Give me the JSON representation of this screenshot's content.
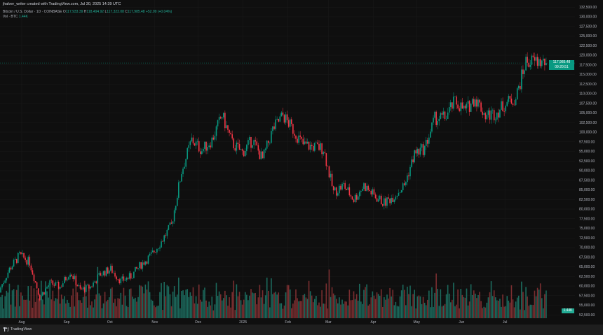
{
  "header": {
    "title": "jhalver_writer created with TradingView.com, Jul 30, 2025 14:39 UTC"
  },
  "legend": {
    "symbol": "Bitcoin / U.S. Dollar · 1D · COINBASE",
    "o_label": "O",
    "o": "117,933.39",
    "h_label": "H",
    "h": "118,494.92",
    "l_label": "L",
    "l": "117,323.08",
    "c_label": "C",
    "c": "117,985.48",
    "change": "+52.09 (+0.04%)",
    "vol_label": "Vol · BTC",
    "vol": "1.44K"
  },
  "price_tag": {
    "price": "117,985.48",
    "countdown": "09:20:51"
  },
  "volume_tag": "1.44K",
  "footer": {
    "logo": "TradingView"
  },
  "colors": {
    "up": "#089981",
    "down": "#f23645",
    "background": "#0f0f0f",
    "grid": "#1a1a1a"
  },
  "chart_data": {
    "type": "candlestick",
    "symbol": "BTCUSD",
    "interval": "1D",
    "y_ticks": [
      "132,500.00",
      "130,000.00",
      "127,500.00",
      "125,000.00",
      "122,500.00",
      "120,000.00",
      "117,500.00",
      "115,000.00",
      "112,500.00",
      "110,000.00",
      "107,500.00",
      "105,000.00",
      "102,500.00",
      "100,000.00",
      "97,500.00",
      "95,000.00",
      "92,500.00",
      "90,000.00",
      "87,500.00",
      "85,000.00",
      "82,500.00",
      "80,000.00",
      "77,500.00",
      "75,000.00",
      "72,500.00",
      "70,000.00",
      "67,500.00",
      "65,000.00",
      "62,500.00",
      "60,000.00",
      "57,500.00",
      "55,000.00",
      "52,500.00"
    ],
    "ylim": [
      52500,
      132500
    ],
    "x_ticks": [
      {
        "label": "Aug",
        "date": "2024-08-01"
      },
      {
        "label": "Sep",
        "date": "2024-09-01"
      },
      {
        "label": "Oct",
        "date": "2024-10-01"
      },
      {
        "label": "Nov",
        "date": "2024-11-01"
      },
      {
        "label": "Dec",
        "date": "2024-12-01"
      },
      {
        "label": "2025",
        "date": "2025-01-01"
      },
      {
        "label": "Feb",
        "date": "2025-02-01"
      },
      {
        "label": "Mar",
        "date": "2025-03-01"
      },
      {
        "label": "Apr",
        "date": "2025-04-01"
      },
      {
        "label": "May",
        "date": "2025-05-01"
      },
      {
        "label": "Jun",
        "date": "2025-06-01"
      },
      {
        "label": "Jul",
        "date": "2025-07-01"
      }
    ],
    "xlim": [
      "2024-07-17",
      "2025-07-30"
    ],
    "weekly_close": [
      [
        "2024-07-17",
        58900
      ],
      [
        "2024-07-24",
        64400
      ],
      [
        "2024-07-31",
        68000
      ],
      [
        "2024-08-07",
        66200
      ],
      [
        "2024-08-14",
        57100
      ],
      [
        "2024-08-21",
        60700
      ],
      [
        "2024-08-28",
        59800
      ],
      [
        "2024-09-04",
        63800
      ],
      [
        "2024-09-11",
        58900
      ],
      [
        "2024-09-18",
        59800
      ],
      [
        "2024-09-25",
        63100
      ],
      [
        "2024-10-02",
        64400
      ],
      [
        "2024-10-09",
        61300
      ],
      [
        "2024-10-16",
        62500
      ],
      [
        "2024-10-23",
        65600
      ],
      [
        "2024-10-30",
        68000
      ],
      [
        "2024-11-06",
        71600
      ],
      [
        "2024-11-13",
        75800
      ],
      [
        "2024-11-20",
        89800
      ],
      [
        "2024-11-27",
        98000
      ],
      [
        "2024-12-04",
        95300
      ],
      [
        "2024-12-11",
        98000
      ],
      [
        "2024-12-18",
        104400
      ],
      [
        "2024-12-25",
        97100
      ],
      [
        "2025-01-01",
        94700
      ],
      [
        "2025-01-08",
        98000
      ],
      [
        "2025-01-15",
        92900
      ],
      [
        "2025-01-22",
        100700
      ],
      [
        "2025-01-29",
        104400
      ],
      [
        "2025-02-05",
        100700
      ],
      [
        "2025-02-12",
        96700
      ],
      [
        "2025-02-19",
        96200
      ],
      [
        "2025-02-26",
        95800
      ],
      [
        "2025-03-05",
        84400
      ],
      [
        "2025-03-12",
        86200
      ],
      [
        "2025-03-19",
        82500
      ],
      [
        "2025-03-26",
        86200
      ],
      [
        "2025-04-02",
        83500
      ],
      [
        "2025-04-09",
        81600
      ],
      [
        "2025-04-16",
        83500
      ],
      [
        "2025-04-23",
        86200
      ],
      [
        "2025-04-30",
        94400
      ],
      [
        "2025-05-07",
        95800
      ],
      [
        "2025-05-14",
        103500
      ],
      [
        "2025-05-21",
        103800
      ],
      [
        "2025-05-28",
        108000
      ],
      [
        "2025-06-04",
        105600
      ],
      [
        "2025-06-11",
        108900
      ],
      [
        "2025-06-18",
        104400
      ],
      [
        "2025-06-25",
        104900
      ],
      [
        "2025-07-02",
        107500
      ],
      [
        "2025-07-09",
        108900
      ],
      [
        "2025-07-16",
        118400
      ],
      [
        "2025-07-23",
        118400
      ],
      [
        "2025-07-30",
        117985.48
      ]
    ],
    "last_price": 117985.48,
    "grid": true
  }
}
